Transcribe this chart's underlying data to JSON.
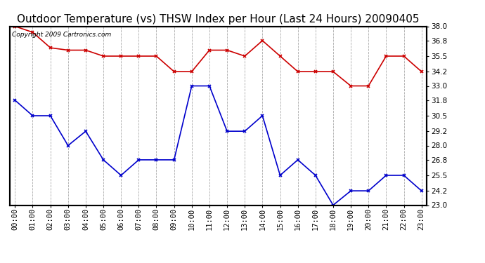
{
  "title": "Outdoor Temperature (vs) THSW Index per Hour (Last 24 Hours) 20090405",
  "copyright_text": "Copyright 2009 Cartronics.com",
  "hours": [
    "00:00",
    "01:00",
    "02:00",
    "03:00",
    "04:00",
    "05:00",
    "06:00",
    "07:00",
    "08:00",
    "09:00",
    "10:00",
    "11:00",
    "12:00",
    "13:00",
    "14:00",
    "15:00",
    "16:00",
    "17:00",
    "18:00",
    "19:00",
    "20:00",
    "21:00",
    "22:00",
    "23:00"
  ],
  "outdoor_temp": [
    31.8,
    30.5,
    30.5,
    28.0,
    29.2,
    26.8,
    25.5,
    26.8,
    26.8,
    26.8,
    33.0,
    33.0,
    29.2,
    29.2,
    30.5,
    25.5,
    26.8,
    25.5,
    23.0,
    24.2,
    24.2,
    25.5,
    25.5,
    24.2
  ],
  "thsw_index": [
    38.0,
    37.5,
    36.2,
    36.0,
    36.0,
    35.5,
    35.5,
    35.5,
    35.5,
    34.2,
    34.2,
    36.0,
    36.0,
    35.5,
    36.8,
    35.5,
    34.2,
    34.2,
    34.2,
    33.0,
    33.0,
    35.5,
    35.5,
    34.2
  ],
  "temp_color": "#0000cc",
  "thsw_color": "#cc0000",
  "marker": "x",
  "ylim_min": 23.0,
  "ylim_max": 38.0,
  "yticks": [
    23.0,
    24.2,
    25.5,
    26.8,
    28.0,
    29.2,
    30.5,
    31.8,
    33.0,
    34.2,
    35.5,
    36.8,
    38.0
  ],
  "bg_color": "#ffffff",
  "plot_bg_color": "#ffffff",
  "grid_color": "#aaaaaa",
  "title_fontsize": 11,
  "tick_fontsize": 7.5,
  "copyright_fontsize": 6.5
}
